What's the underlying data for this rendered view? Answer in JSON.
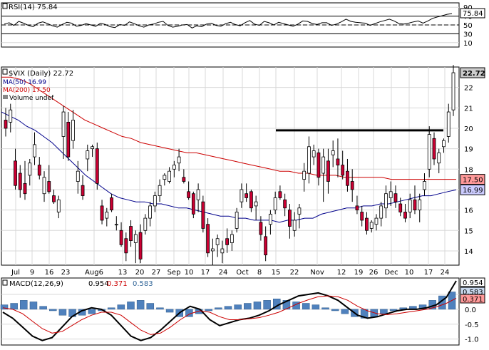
{
  "chart_data": [
    {
      "panel": "rsi",
      "type": "line",
      "legend_label": "RSI(14) 75.84",
      "y_ticks": [
        "90",
        "70",
        "50",
        "30",
        "10"
      ],
      "current_value_label": "75.84",
      "reference_levels": [
        30,
        50,
        70
      ],
      "ylim": [
        0,
        100
      ],
      "series": [
        {
          "values": [
            52,
            55,
            49,
            58,
            54,
            49,
            46,
            54,
            57,
            53,
            48,
            45,
            51,
            56,
            54,
            47,
            49,
            53,
            50,
            47,
            54,
            51,
            46,
            44,
            51,
            49,
            57,
            53,
            48,
            45,
            50,
            52,
            56,
            58,
            49,
            45,
            47,
            50,
            51,
            43,
            48,
            46,
            52,
            54,
            49,
            47,
            53,
            56,
            51,
            48,
            55,
            60,
            52,
            49,
            58,
            55,
            50,
            56,
            53,
            50,
            47,
            52,
            59,
            58,
            53,
            51,
            55,
            55,
            49,
            52,
            57,
            63,
            58,
            56,
            55,
            54,
            49,
            53,
            57,
            60,
            63,
            59,
            53,
            52,
            54,
            57,
            59,
            54,
            59,
            65,
            68,
            71,
            74,
            75.84
          ],
          "color": "#000000"
        }
      ]
    },
    {
      "panel": "price",
      "type": "candlestick",
      "legend_label": "$VIX (Daily) 22.72",
      "y_ticks": [
        "14",
        "15",
        "16",
        "17",
        "18",
        "19",
        "20",
        "21",
        "22"
      ],
      "ylim": [
        13.3,
        23.0
      ],
      "x_tick_labels": [
        "Jul",
        "9",
        "16",
        "23",
        "Aug6",
        "13",
        "20",
        "27",
        "Sep",
        "10",
        "17",
        "24",
        "Oct",
        "8",
        "15",
        "22",
        "Nov",
        "12",
        "19",
        "26",
        "Dec",
        "10",
        "17",
        "24"
      ],
      "price_labels": [
        "22.72",
        "17.50",
        "16.99"
      ],
      "horizontal_line": 19.9,
      "series": [
        {
          "name": "MA(50) 16.99",
          "color": "#00008b",
          "values": [
            20.8,
            20.6,
            20.4,
            20.1,
            19.9,
            19.6,
            19.3,
            18.9,
            18.5,
            18.1,
            17.7,
            17.4,
            17.1,
            16.8,
            16.6,
            16.5,
            16.4,
            16.4,
            16.3,
            16.3,
            16.2,
            16.1,
            16.1,
            16.0,
            15.9,
            15.8,
            15.7,
            15.7,
            15.6,
            15.6,
            15.5,
            15.5,
            15.5,
            15.4,
            15.5,
            15.5,
            15.6,
            15.6,
            15.8,
            15.9,
            16.0,
            16.1,
            16.1,
            16.2,
            16.2,
            16.3,
            16.3,
            16.4,
            16.5,
            16.6,
            16.7,
            16.7,
            16.8,
            16.9,
            16.99
          ]
        },
        {
          "name": "MA(200) 17.50",
          "color": "#cc0000",
          "values": [
            22.5,
            22.5,
            22.4,
            22.2,
            21.9,
            21.6,
            21.3,
            21.0,
            20.7,
            20.4,
            20.2,
            20.0,
            19.8,
            19.6,
            19.5,
            19.3,
            19.2,
            19.1,
            19.0,
            18.9,
            18.8,
            18.8,
            18.7,
            18.6,
            18.5,
            18.4,
            18.3,
            18.2,
            18.1,
            18.0,
            17.9,
            17.9,
            17.8,
            17.8,
            17.7,
            17.7,
            17.7,
            17.6,
            17.6,
            17.6,
            17.6,
            17.6,
            17.5,
            17.5,
            17.5,
            17.5,
            17.5,
            17.5,
            17.5,
            17.5
          ]
        }
      ],
      "extra_legend": [
        "Volume undef"
      ],
      "candles": [
        {
          "o": 20.4,
          "h": 21.0,
          "l": 19.6,
          "c": 20.0
        },
        {
          "o": 20.3,
          "h": 21.2,
          "l": 19.8,
          "c": 20.9
        },
        {
          "o": 18.4,
          "h": 19.0,
          "l": 17.0,
          "c": 17.2
        },
        {
          "o": 17.8,
          "h": 18.2,
          "l": 16.6,
          "c": 17.0
        },
        {
          "o": 17.3,
          "h": 18.4,
          "l": 16.5,
          "c": 16.8
        },
        {
          "o": 17.7,
          "h": 18.5,
          "l": 17.2,
          "c": 18.3
        },
        {
          "o": 18.6,
          "h": 19.8,
          "l": 18.2,
          "c": 19.2
        },
        {
          "o": 18.2,
          "h": 18.6,
          "l": 17.5,
          "c": 17.7
        },
        {
          "o": 16.8,
          "h": 17.9,
          "l": 16.4,
          "c": 17.6
        },
        {
          "o": 17.4,
          "h": 18.2,
          "l": 16.8,
          "c": 16.9
        },
        {
          "o": 16.7,
          "h": 17.0,
          "l": 16.3,
          "c": 16.4
        },
        {
          "o": 15.9,
          "h": 16.7,
          "l": 15.6,
          "c": 16.5
        },
        {
          "o": 19.6,
          "h": 21.1,
          "l": 18.5,
          "c": 20.8
        },
        {
          "o": 20.3,
          "h": 20.8,
          "l": 18.4,
          "c": 18.6
        },
        {
          "o": 19.4,
          "h": 20.9,
          "l": 19.0,
          "c": 20.4
        },
        {
          "o": 17.4,
          "h": 18.4,
          "l": 16.8,
          "c": 17.9
        },
        {
          "o": 17.2,
          "h": 17.7,
          "l": 16.5,
          "c": 16.7
        },
        {
          "o": 18.5,
          "h": 19.2,
          "l": 17.9,
          "c": 18.9
        },
        {
          "o": 19.0,
          "h": 19.2,
          "l": 18.6,
          "c": 19.1
        },
        {
          "o": 19.0,
          "h": 19.3,
          "l": 17.0,
          "c": 17.3
        },
        {
          "o": 16.2,
          "h": 16.5,
          "l": 15.3,
          "c": 15.5
        },
        {
          "o": 15.6,
          "h": 16.1,
          "l": 15.2,
          "c": 15.9
        },
        {
          "o": 16.6,
          "h": 16.8,
          "l": 15.9,
          "c": 16.0
        },
        {
          "o": 15.3,
          "h": 15.7,
          "l": 15.0,
          "c": 15.3
        },
        {
          "o": 15.0,
          "h": 15.4,
          "l": 14.2,
          "c": 14.3
        },
        {
          "o": 14.6,
          "h": 14.9,
          "l": 13.5,
          "c": 13.9
        },
        {
          "o": 15.2,
          "h": 15.5,
          "l": 14.2,
          "c": 14.5
        },
        {
          "o": 14.4,
          "h": 15.0,
          "l": 13.4,
          "c": 14.8
        },
        {
          "o": 14.9,
          "h": 15.3,
          "l": 13.4,
          "c": 13.6
        },
        {
          "o": 15.0,
          "h": 15.8,
          "l": 14.8,
          "c": 15.6
        },
        {
          "o": 15.6,
          "h": 16.4,
          "l": 15.2,
          "c": 16.2
        },
        {
          "o": 16.2,
          "h": 16.9,
          "l": 15.9,
          "c": 16.7
        },
        {
          "o": 16.7,
          "h": 17.5,
          "l": 16.4,
          "c": 17.2
        },
        {
          "o": 17.5,
          "h": 17.8,
          "l": 17.2,
          "c": 17.7
        },
        {
          "o": 17.4,
          "h": 18.1,
          "l": 17.3,
          "c": 17.9
        },
        {
          "o": 18.0,
          "h": 18.4,
          "l": 17.6,
          "c": 18.2
        },
        {
          "o": 18.3,
          "h": 19.0,
          "l": 17.9,
          "c": 18.6
        },
        {
          "o": 17.6,
          "h": 18.0,
          "l": 17.3,
          "c": 17.4
        },
        {
          "o": 16.9,
          "h": 17.4,
          "l": 16.5,
          "c": 16.6
        },
        {
          "o": 16.8,
          "h": 16.9,
          "l": 15.6,
          "c": 15.8
        },
        {
          "o": 16.5,
          "h": 17.3,
          "l": 15.9,
          "c": 17.0
        },
        {
          "o": 16.4,
          "h": 16.7,
          "l": 14.9,
          "c": 15.1
        },
        {
          "o": 15.3,
          "h": 15.6,
          "l": 13.7,
          "c": 13.9
        },
        {
          "o": 14.0,
          "h": 14.6,
          "l": 13.3,
          "c": 14.1
        },
        {
          "o": 14.3,
          "h": 14.8,
          "l": 13.7,
          "c": 14.6
        },
        {
          "o": 13.9,
          "h": 14.5,
          "l": 13.4,
          "c": 14.1
        },
        {
          "o": 14.6,
          "h": 15.1,
          "l": 13.9,
          "c": 14.3
        },
        {
          "o": 14.4,
          "h": 15.0,
          "l": 14.0,
          "c": 14.8
        },
        {
          "o": 15.1,
          "h": 16.1,
          "l": 14.9,
          "c": 15.9
        },
        {
          "o": 16.4,
          "h": 17.3,
          "l": 16.1,
          "c": 17.0
        },
        {
          "o": 16.8,
          "h": 17.3,
          "l": 16.4,
          "c": 16.6
        },
        {
          "o": 16.9,
          "h": 17.0,
          "l": 15.9,
          "c": 16.1
        },
        {
          "o": 16.2,
          "h": 16.7,
          "l": 15.5,
          "c": 16.4
        },
        {
          "o": 15.4,
          "h": 15.7,
          "l": 14.5,
          "c": 14.8
        },
        {
          "o": 14.7,
          "h": 15.2,
          "l": 13.5,
          "c": 13.8
        },
        {
          "o": 15.3,
          "h": 16.0,
          "l": 14.8,
          "c": 15.8
        },
        {
          "o": 16.0,
          "h": 16.9,
          "l": 15.8,
          "c": 16.6
        },
        {
          "o": 16.9,
          "h": 17.2,
          "l": 16.5,
          "c": 16.6
        },
        {
          "o": 16.5,
          "h": 16.8,
          "l": 15.7,
          "c": 16.1
        },
        {
          "o": 16.0,
          "h": 16.3,
          "l": 14.6,
          "c": 15.2
        },
        {
          "o": 15.0,
          "h": 15.9,
          "l": 14.7,
          "c": 15.5
        },
        {
          "o": 15.8,
          "h": 16.3,
          "l": 15.1,
          "c": 16.1
        },
        {
          "o": 17.5,
          "h": 18.3,
          "l": 16.9,
          "c": 17.9
        },
        {
          "o": 17.8,
          "h": 19.6,
          "l": 17.3,
          "c": 19.1
        },
        {
          "o": 18.6,
          "h": 19.2,
          "l": 18.2,
          "c": 18.9
        },
        {
          "o": 18.8,
          "h": 19.0,
          "l": 17.2,
          "c": 17.6
        },
        {
          "o": 17.8,
          "h": 19.0,
          "l": 16.4,
          "c": 18.6
        },
        {
          "o": 18.4,
          "h": 19.0,
          "l": 16.8,
          "c": 17.4
        },
        {
          "o": 18.7,
          "h": 19.4,
          "l": 18.1,
          "c": 18.9
        },
        {
          "o": 18.5,
          "h": 19.5,
          "l": 17.6,
          "c": 18.2
        },
        {
          "o": 18.2,
          "h": 18.9,
          "l": 17.5,
          "c": 17.7
        },
        {
          "o": 17.9,
          "h": 18.5,
          "l": 16.9,
          "c": 17.2
        },
        {
          "o": 17.4,
          "h": 18.0,
          "l": 16.4,
          "c": 17.0
        },
        {
          "o": 16.2,
          "h": 16.7,
          "l": 15.8,
          "c": 16.0
        },
        {
          "o": 15.9,
          "h": 16.2,
          "l": 15.2,
          "c": 15.5
        },
        {
          "o": 15.6,
          "h": 15.9,
          "l": 14.8,
          "c": 15.0
        },
        {
          "o": 15.1,
          "h": 15.5,
          "l": 14.9,
          "c": 15.4
        },
        {
          "o": 15.3,
          "h": 15.8,
          "l": 15.0,
          "c": 15.6
        },
        {
          "o": 15.6,
          "h": 16.4,
          "l": 15.2,
          "c": 16.2
        },
        {
          "o": 16.1,
          "h": 17.2,
          "l": 15.6,
          "c": 16.8
        },
        {
          "o": 16.6,
          "h": 17.4,
          "l": 16.2,
          "c": 16.9
        },
        {
          "o": 16.8,
          "h": 17.2,
          "l": 16.1,
          "c": 16.4
        },
        {
          "o": 16.3,
          "h": 16.6,
          "l": 15.7,
          "c": 15.9
        },
        {
          "o": 15.9,
          "h": 16.3,
          "l": 15.4,
          "c": 15.6
        },
        {
          "o": 15.9,
          "h": 16.8,
          "l": 15.6,
          "c": 16.5
        },
        {
          "o": 16.5,
          "h": 17.2,
          "l": 15.8,
          "c": 16.0
        },
        {
          "o": 16.0,
          "h": 16.8,
          "l": 15.4,
          "c": 16.5
        },
        {
          "o": 17.0,
          "h": 17.8,
          "l": 16.7,
          "c": 17.4
        },
        {
          "o": 18.0,
          "h": 20.1,
          "l": 17.6,
          "c": 19.7
        },
        {
          "o": 19.5,
          "h": 19.8,
          "l": 18.2,
          "c": 18.5
        },
        {
          "o": 18.3,
          "h": 19.0,
          "l": 17.8,
          "c": 18.8
        },
        {
          "o": 19.1,
          "h": 19.5,
          "l": 18.8,
          "c": 19.4
        },
        {
          "o": 19.6,
          "h": 21.2,
          "l": 19.3,
          "c": 20.8
        },
        {
          "o": 20.9,
          "h": 23.1,
          "l": 20.6,
          "c": 22.72
        }
      ]
    },
    {
      "panel": "macd",
      "type": "line",
      "legend_label": "MACD(12,26,9)",
      "legend_values": [
        "0.954",
        "0.371",
        "0.583"
      ],
      "y_ticks": [
        "0.5",
        "0.0",
        "-0.5",
        "-1.0"
      ],
      "value_labels": [
        "0.954",
        "0.583",
        "0.371"
      ],
      "ylim": [
        -1.2,
        1.05
      ],
      "series": [
        {
          "name": "MACD",
          "color": "#000000",
          "values": [
            -0.1,
            -0.3,
            -0.6,
            -0.9,
            -1.05,
            -0.95,
            -0.6,
            -0.25,
            -0.05,
            0.05,
            0.0,
            -0.2,
            -0.55,
            -0.9,
            -1.05,
            -0.95,
            -0.7,
            -0.4,
            -0.1,
            0.1,
            0.0,
            -0.35,
            -0.55,
            -0.45,
            -0.35,
            -0.3,
            -0.2,
            -0.05,
            0.15,
            0.3,
            0.45,
            0.5,
            0.55,
            0.45,
            0.3,
            0.05,
            -0.2,
            -0.3,
            -0.25,
            -0.15,
            -0.05,
            0.0,
            0.0,
            0.05,
            0.15,
            0.4,
            0.954
          ]
        },
        {
          "name": "Signal",
          "color": "#cc0000",
          "values": [
            0.05,
            0.0,
            -0.15,
            -0.4,
            -0.65,
            -0.8,
            -0.75,
            -0.55,
            -0.35,
            -0.2,
            -0.1,
            -0.1,
            -0.2,
            -0.45,
            -0.7,
            -0.85,
            -0.8,
            -0.6,
            -0.35,
            -0.15,
            -0.05,
            -0.1,
            -0.25,
            -0.35,
            -0.35,
            -0.32,
            -0.28,
            -0.2,
            -0.1,
            0.05,
            0.2,
            0.32,
            0.42,
            0.45,
            0.42,
            0.3,
            0.1,
            -0.05,
            -0.15,
            -0.18,
            -0.15,
            -0.1,
            -0.05,
            0.0,
            0.08,
            0.2,
            0.371
          ]
        }
      ],
      "histogram": [
        0.15,
        0.2,
        0.3,
        0.25,
        0.1,
        -0.05,
        -0.2,
        -0.25,
        -0.2,
        -0.15,
        -0.05,
        0.05,
        0.15,
        0.25,
        0.3,
        0.2,
        0.05,
        -0.1,
        -0.25,
        -0.25,
        -0.15,
        -0.05,
        0.05,
        0.1,
        0.15,
        0.2,
        0.25,
        0.3,
        0.35,
        0.3,
        0.25,
        0.2,
        0.15,
        0.05,
        -0.05,
        -0.15,
        -0.25,
        -0.3,
        -0.25,
        -0.15,
        -0.05,
        0.05,
        0.1,
        0.15,
        0.3,
        0.45,
        0.583
      ]
    }
  ],
  "colors": {
    "up_candle": "#ffffff",
    "down_candle": "#cc0033",
    "outline": "#000000",
    "price_label_bg": "#cccccc",
    "ma200_label_bg": "#ff9999",
    "ma50_label_bg": "#ccccff",
    "histogram": "#4f81bd",
    "grid": "#d8d8d8",
    "signal_value": "#cc0000",
    "histogram_value": "#336699"
  }
}
